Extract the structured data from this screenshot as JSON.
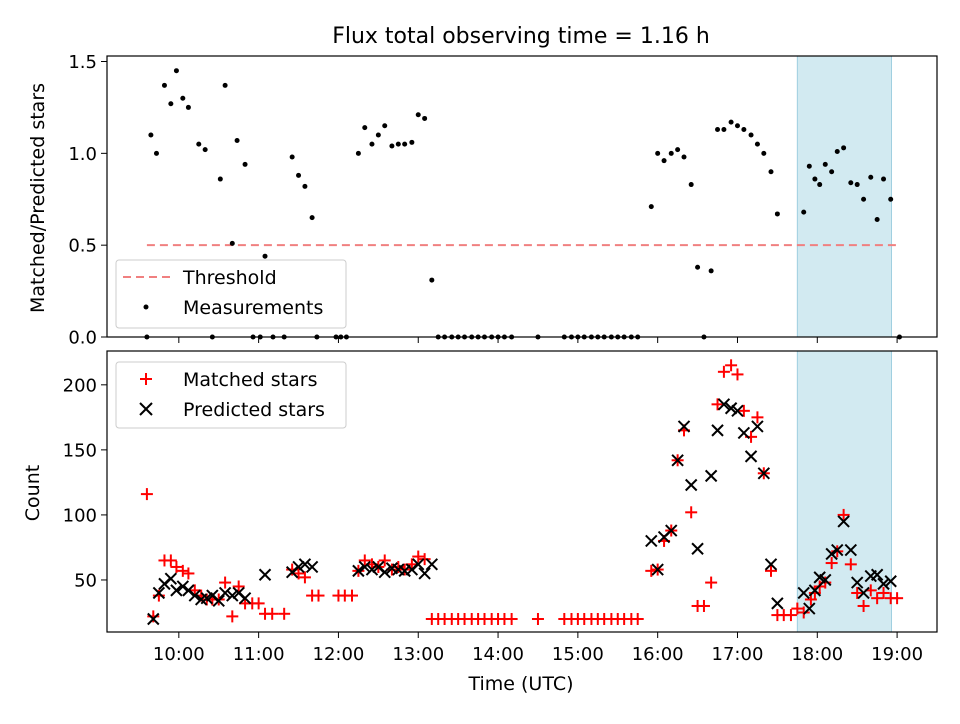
{
  "title": "Flux total observing time = 1.16 h",
  "chart_data": [
    {
      "type": "scatter",
      "ylabel": "Matched/Predicted stars",
      "xlim": [
        9.1,
        19.5
      ],
      "ylim": [
        0,
        1.53
      ],
      "yticks": [
        0,
        0.5,
        1.0,
        1.5
      ],
      "ytick_labels": [
        "0.0",
        "0.5",
        "1.0",
        "1.5"
      ],
      "highlight_span": [
        17.75,
        18.93
      ],
      "highlight_color": "#add8e6",
      "threshold": {
        "label": "Threshold",
        "value": 0.5,
        "x_range": [
          9.6,
          19.03
        ],
        "color": "#f08080"
      },
      "measurements": {
        "label": "Measurements",
        "color": "#000000",
        "points": [
          [
            9.6,
            0
          ],
          [
            9.65,
            1.1
          ],
          [
            9.72,
            1.0
          ],
          [
            9.82,
            1.37
          ],
          [
            9.9,
            1.27
          ],
          [
            9.97,
            1.45
          ],
          [
            10.05,
            1.3
          ],
          [
            10.12,
            1.25
          ],
          [
            10.25,
            1.05
          ],
          [
            10.33,
            1.02
          ],
          [
            10.42,
            0
          ],
          [
            10.52,
            0.86
          ],
          [
            10.58,
            1.37
          ],
          [
            10.67,
            0.51
          ],
          [
            10.73,
            1.07
          ],
          [
            10.83,
            0.94
          ],
          [
            10.93,
            0
          ],
          [
            11.02,
            0
          ],
          [
            11.08,
            0.44
          ],
          [
            11.18,
            0
          ],
          [
            11.32,
            0
          ],
          [
            11.42,
            0.98
          ],
          [
            11.5,
            0.88
          ],
          [
            11.58,
            0.82
          ],
          [
            11.67,
            0.65
          ],
          [
            11.73,
            0
          ],
          [
            11.97,
            0
          ],
          [
            12.03,
            0
          ],
          [
            12.1,
            0
          ],
          [
            12.25,
            1.0
          ],
          [
            12.33,
            1.14
          ],
          [
            12.42,
            1.05
          ],
          [
            12.5,
            1.1
          ],
          [
            12.58,
            1.15
          ],
          [
            12.67,
            1.04
          ],
          [
            12.75,
            1.05
          ],
          [
            12.83,
            1.05
          ],
          [
            12.92,
            1.06
          ],
          [
            13.0,
            1.21
          ],
          [
            13.08,
            1.19
          ],
          [
            13.17,
            0.31
          ],
          [
            13.25,
            0
          ],
          [
            13.33,
            0
          ],
          [
            13.42,
            0
          ],
          [
            13.5,
            0
          ],
          [
            13.58,
            0
          ],
          [
            13.67,
            0
          ],
          [
            13.75,
            0
          ],
          [
            13.83,
            0
          ],
          [
            13.92,
            0
          ],
          [
            14.0,
            0
          ],
          [
            14.08,
            0
          ],
          [
            14.17,
            0
          ],
          [
            14.5,
            0
          ],
          [
            14.83,
            0
          ],
          [
            14.92,
            0
          ],
          [
            15.0,
            0
          ],
          [
            15.08,
            0
          ],
          [
            15.17,
            0
          ],
          [
            15.25,
            0
          ],
          [
            15.33,
            0
          ],
          [
            15.42,
            0
          ],
          [
            15.5,
            0
          ],
          [
            15.58,
            0
          ],
          [
            15.67,
            0
          ],
          [
            15.75,
            0
          ],
          [
            15.92,
            0.71
          ],
          [
            16.0,
            1.0
          ],
          [
            16.08,
            0.96
          ],
          [
            16.17,
            1.0
          ],
          [
            16.25,
            1.02
          ],
          [
            16.33,
            0.98
          ],
          [
            16.42,
            0.83
          ],
          [
            16.5,
            0.38
          ],
          [
            16.58,
            0
          ],
          [
            16.67,
            0.36
          ],
          [
            16.75,
            1.13
          ],
          [
            16.83,
            1.13
          ],
          [
            16.92,
            1.17
          ],
          [
            17.0,
            1.15
          ],
          [
            17.08,
            1.13
          ],
          [
            17.17,
            1.1
          ],
          [
            17.25,
            1.05
          ],
          [
            17.33,
            1.0
          ],
          [
            17.42,
            0.9
          ],
          [
            17.5,
            0.67
          ],
          [
            17.83,
            0.68
          ],
          [
            17.9,
            0.93
          ],
          [
            17.97,
            0.86
          ],
          [
            18.03,
            0.83
          ],
          [
            18.1,
            0.94
          ],
          [
            18.18,
            0.9
          ],
          [
            18.25,
            1.01
          ],
          [
            18.33,
            1.03
          ],
          [
            18.42,
            0.84
          ],
          [
            18.5,
            0.83
          ],
          [
            18.58,
            0.75
          ],
          [
            18.67,
            0.87
          ],
          [
            18.75,
            0.64
          ],
          [
            18.83,
            0.86
          ],
          [
            18.92,
            0.75
          ],
          [
            19.03,
            0
          ]
        ]
      },
      "legend": {
        "position": "lower-left"
      }
    },
    {
      "type": "scatter",
      "xlabel": "Time (UTC)",
      "ylabel": "Count",
      "xlim": [
        9.1,
        19.5
      ],
      "ylim": [
        10,
        226
      ],
      "yticks": [
        50,
        100,
        150,
        200
      ],
      "ytick_labels": [
        "50",
        "100",
        "150",
        "200"
      ],
      "xticks": [
        10,
        11,
        12,
        13,
        14,
        15,
        16,
        17,
        18,
        19
      ],
      "xtick_labels": [
        "10:00",
        "11:00",
        "12:00",
        "13:00",
        "14:00",
        "15:00",
        "16:00",
        "17:00",
        "18:00",
        "19:00"
      ],
      "highlight_span": [
        17.75,
        18.93
      ],
      "highlight_color": "#add8e6",
      "series": [
        {
          "name": "Matched stars",
          "marker": "+",
          "color": "#ff0000",
          "points": [
            [
              9.6,
              116
            ],
            [
              9.68,
              22
            ],
            [
              9.75,
              38
            ],
            [
              9.82,
              65
            ],
            [
              9.9,
              65
            ],
            [
              9.97,
              60
            ],
            [
              10.05,
              57
            ],
            [
              10.12,
              55
            ],
            [
              10.2,
              42
            ],
            [
              10.28,
              38
            ],
            [
              10.35,
              35
            ],
            [
              10.42,
              35
            ],
            [
              10.5,
              35
            ],
            [
              10.58,
              48
            ],
            [
              10.67,
              22
            ],
            [
              10.75,
              45
            ],
            [
              10.83,
              32
            ],
            [
              10.92,
              32
            ],
            [
              11.0,
              32
            ],
            [
              11.08,
              24
            ],
            [
              11.17,
              24
            ],
            [
              11.32,
              24
            ],
            [
              11.42,
              58
            ],
            [
              11.5,
              55
            ],
            [
              11.58,
              52
            ],
            [
              11.67,
              38
            ],
            [
              11.75,
              38
            ],
            [
              12.0,
              38
            ],
            [
              12.08,
              38
            ],
            [
              12.17,
              38
            ],
            [
              12.25,
              57
            ],
            [
              12.33,
              65
            ],
            [
              12.42,
              62
            ],
            [
              12.5,
              60
            ],
            [
              12.58,
              65
            ],
            [
              12.67,
              58
            ],
            [
              12.75,
              60
            ],
            [
              12.83,
              58
            ],
            [
              12.92,
              62
            ],
            [
              13.0,
              68
            ],
            [
              13.08,
              66
            ],
            [
              13.17,
              20
            ],
            [
              13.25,
              20
            ],
            [
              13.33,
              20
            ],
            [
              13.42,
              20
            ],
            [
              13.5,
              20
            ],
            [
              13.58,
              20
            ],
            [
              13.67,
              20
            ],
            [
              13.75,
              20
            ],
            [
              13.83,
              20
            ],
            [
              13.92,
              20
            ],
            [
              14.0,
              20
            ],
            [
              14.08,
              20
            ],
            [
              14.17,
              20
            ],
            [
              14.5,
              20
            ],
            [
              14.83,
              20
            ],
            [
              14.92,
              20
            ],
            [
              15.0,
              20
            ],
            [
              15.08,
              20
            ],
            [
              15.17,
              20
            ],
            [
              15.25,
              20
            ],
            [
              15.33,
              20
            ],
            [
              15.42,
              20
            ],
            [
              15.5,
              20
            ],
            [
              15.58,
              20
            ],
            [
              15.67,
              20
            ],
            [
              15.75,
              20
            ],
            [
              15.92,
              57
            ],
            [
              16.0,
              58
            ],
            [
              16.08,
              80
            ],
            [
              16.17,
              88
            ],
            [
              16.25,
              142
            ],
            [
              16.33,
              165
            ],
            [
              16.42,
              102
            ],
            [
              16.5,
              30
            ],
            [
              16.58,
              30
            ],
            [
              16.67,
              48
            ],
            [
              16.75,
              185
            ],
            [
              16.83,
              210
            ],
            [
              16.92,
              215
            ],
            [
              17.0,
              208
            ],
            [
              17.08,
              180
            ],
            [
              17.17,
              160
            ],
            [
              17.25,
              175
            ],
            [
              17.33,
              132
            ],
            [
              17.42,
              57
            ],
            [
              17.5,
              23
            ],
            [
              17.58,
              23
            ],
            [
              17.67,
              23
            ],
            [
              17.75,
              28
            ],
            [
              17.83,
              25
            ],
            [
              17.92,
              35
            ],
            [
              17.97,
              40
            ],
            [
              18.03,
              45
            ],
            [
              18.1,
              48
            ],
            [
              18.18,
              63
            ],
            [
              18.25,
              72
            ],
            [
              18.33,
              100
            ],
            [
              18.42,
              62
            ],
            [
              18.5,
              40
            ],
            [
              18.58,
              30
            ],
            [
              18.67,
              42
            ],
            [
              18.75,
              36
            ],
            [
              18.83,
              40
            ],
            [
              18.92,
              36
            ],
            [
              19.0,
              36
            ]
          ]
        },
        {
          "name": "Predicted stars",
          "marker": "x",
          "color": "#000000",
          "points": [
            [
              9.68,
              20
            ],
            [
              9.75,
              40
            ],
            [
              9.82,
              47
            ],
            [
              9.9,
              51
            ],
            [
              9.97,
              42
            ],
            [
              10.05,
              45
            ],
            [
              10.12,
              42
            ],
            [
              10.2,
              38
            ],
            [
              10.28,
              35
            ],
            [
              10.35,
              36
            ],
            [
              10.42,
              38
            ],
            [
              10.5,
              34
            ],
            [
              10.58,
              40
            ],
            [
              10.67,
              38
            ],
            [
              10.75,
              40
            ],
            [
              10.83,
              36
            ],
            [
              11.08,
              54
            ],
            [
              11.42,
              56
            ],
            [
              11.5,
              60
            ],
            [
              11.58,
              62
            ],
            [
              11.67,
              60
            ],
            [
              12.25,
              57
            ],
            [
              12.33,
              60
            ],
            [
              12.42,
              58
            ],
            [
              12.5,
              60
            ],
            [
              12.58,
              56
            ],
            [
              12.67,
              59
            ],
            [
              12.75,
              58
            ],
            [
              12.83,
              57
            ],
            [
              12.92,
              58
            ],
            [
              13.0,
              62
            ],
            [
              13.08,
              55
            ],
            [
              13.17,
              62
            ],
            [
              15.92,
              80
            ],
            [
              16.0,
              58
            ],
            [
              16.08,
              83
            ],
            [
              16.17,
              88
            ],
            [
              16.25,
              142
            ],
            [
              16.33,
              168
            ],
            [
              16.42,
              123
            ],
            [
              16.5,
              74
            ],
            [
              16.67,
              130
            ],
            [
              16.75,
              165
            ],
            [
              16.83,
              185
            ],
            [
              16.92,
              182
            ],
            [
              17.0,
              180
            ],
            [
              17.08,
              163
            ],
            [
              17.17,
              145
            ],
            [
              17.25,
              168
            ],
            [
              17.33,
              132
            ],
            [
              17.42,
              62
            ],
            [
              17.5,
              32
            ],
            [
              17.83,
              40
            ],
            [
              17.9,
              28
            ],
            [
              17.97,
              42
            ],
            [
              18.03,
              52
            ],
            [
              18.1,
              50
            ],
            [
              18.18,
              70
            ],
            [
              18.25,
              73
            ],
            [
              18.33,
              95
            ],
            [
              18.42,
              73
            ],
            [
              18.5,
              48
            ],
            [
              18.58,
              40
            ],
            [
              18.67,
              53
            ],
            [
              18.75,
              54
            ],
            [
              18.83,
              47
            ],
            [
              18.92,
              49
            ]
          ]
        }
      ],
      "legend": {
        "position": "top-left"
      }
    }
  ]
}
